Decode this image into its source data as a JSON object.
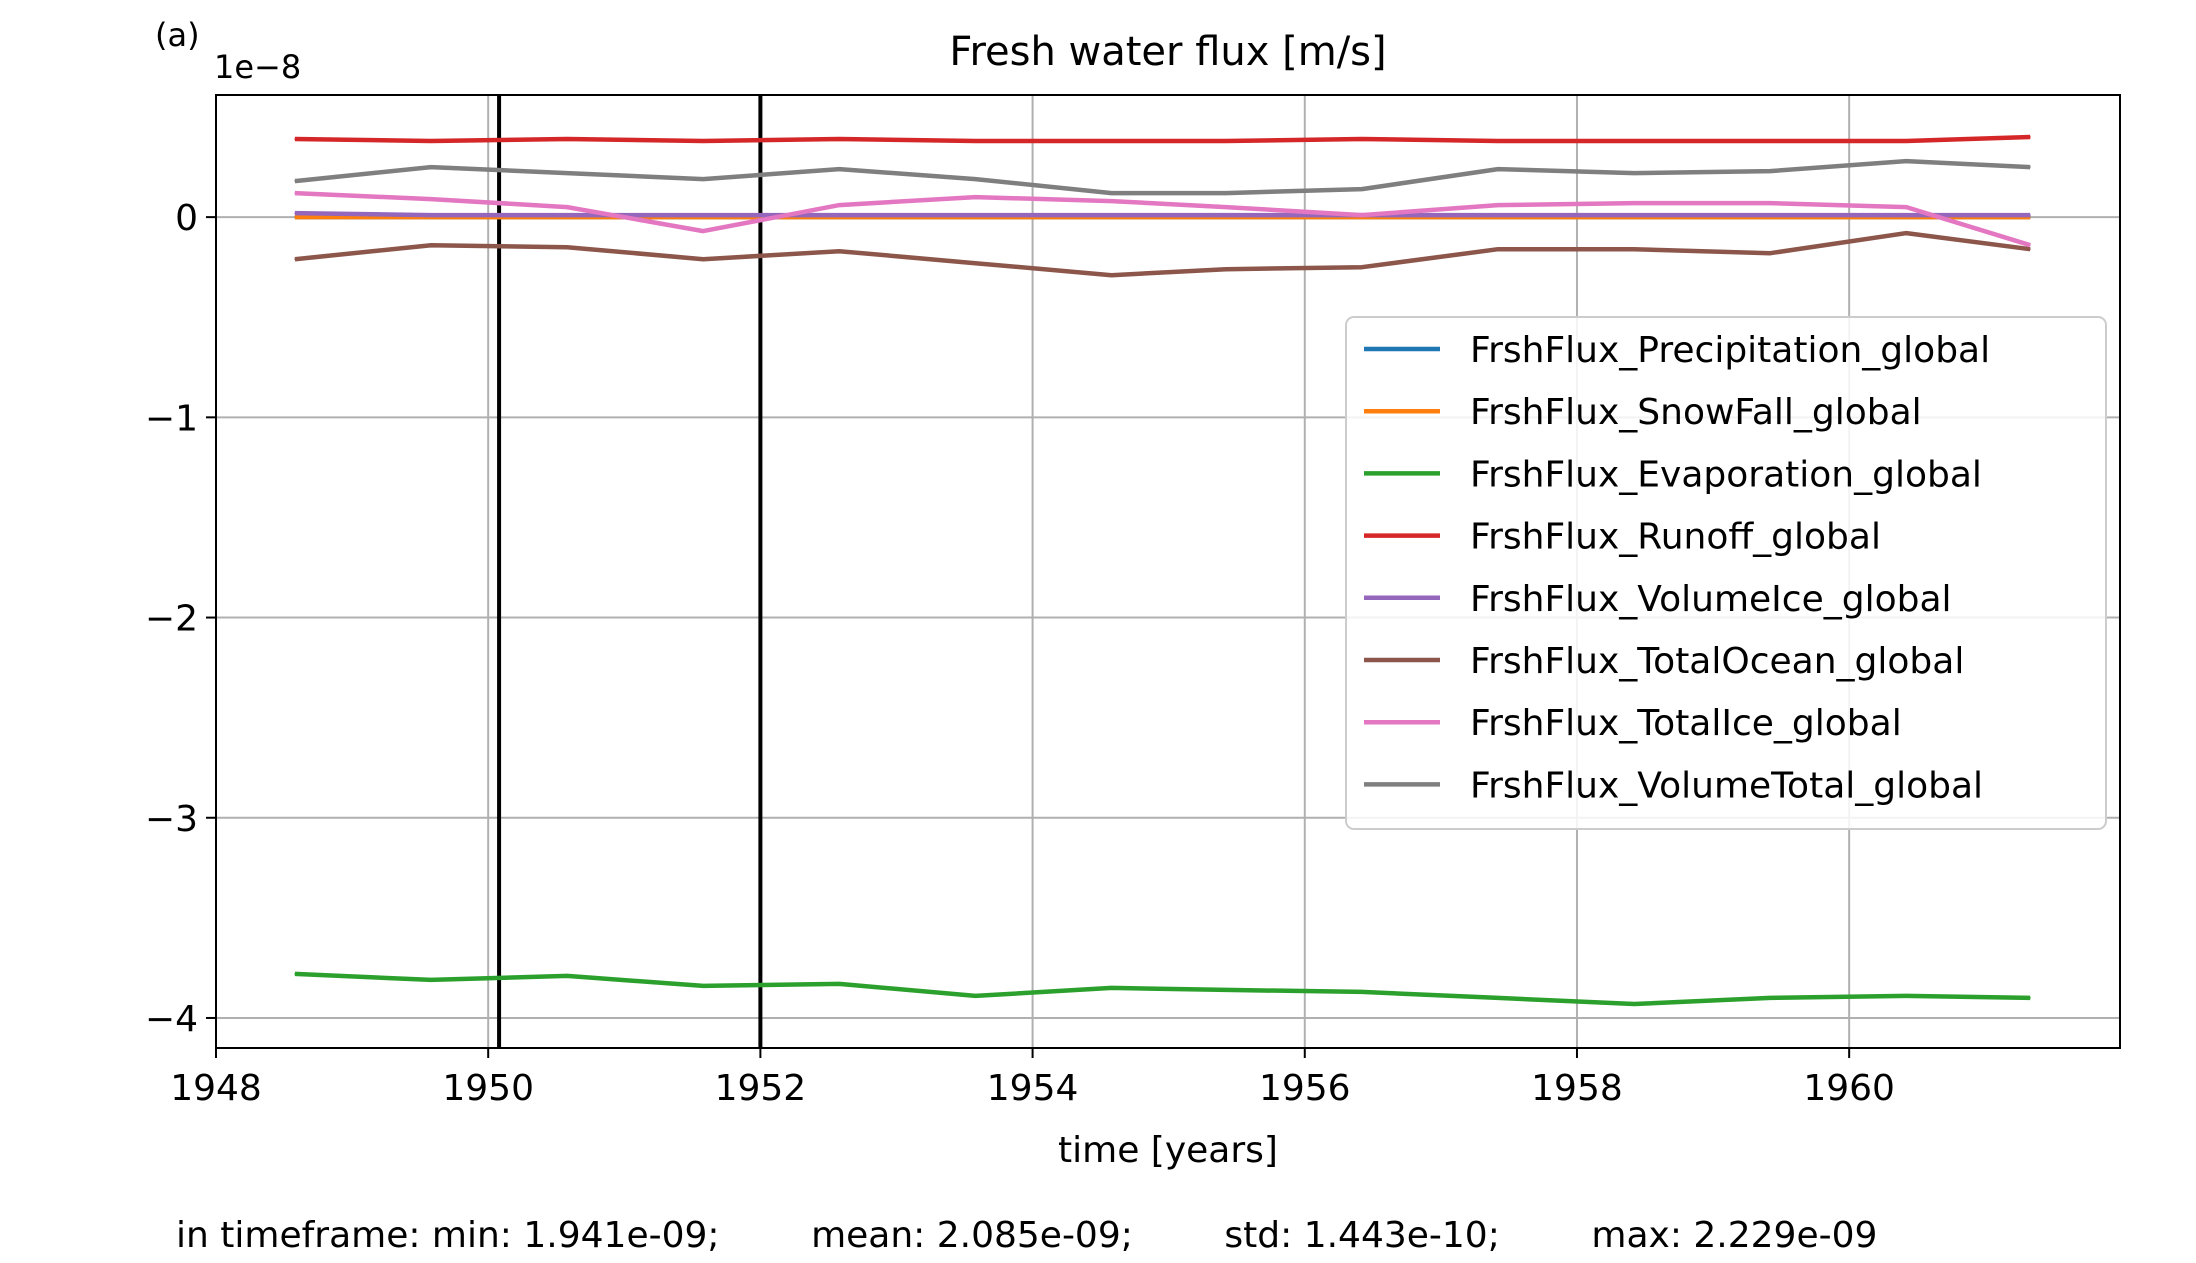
{
  "panel_label": "(a)",
  "footer": "in timeframe: min: 1.941e-09;        mean: 2.085e-09;        std: 1.443e-10;        max: 2.229e-09",
  "chart_data": {
    "type": "line",
    "title": "Fresh water flux [m/s]",
    "xlabel": "time [years]",
    "ylabel": "",
    "offset_label": "1e−8",
    "xlim": [
      1948.0,
      1961.99
    ],
    "ylim": [
      -4.15,
      0.61
    ],
    "xticks": [
      1948,
      1950,
      1952,
      1954,
      1956,
      1958,
      1960
    ],
    "xtick_labels": [
      "1948",
      "1950",
      "1952",
      "1954",
      "1956",
      "1958",
      "1960"
    ],
    "yticks": [
      -4,
      -3,
      -2,
      -1,
      0
    ],
    "ytick_labels": [
      "−4",
      "−3",
      "−2",
      "−1",
      "0"
    ],
    "grid": true,
    "legend_position": "center-right",
    "vlines": [
      1950.08,
      1952.0
    ],
    "x": [
      1948.58,
      1949.58,
      1950.58,
      1951.58,
      1952.58,
      1953.58,
      1954.58,
      1955.42,
      1956.42,
      1957.42,
      1958.42,
      1959.42,
      1960.42,
      1961.33
    ],
    "series": [
      {
        "name": "FrshFlux_Precipitation_global",
        "color": "#1f77b4",
        "values": [
          0.0,
          0.0,
          0.0,
          0.0,
          0.0,
          0.0,
          0.0,
          0.0,
          0.0,
          0.0,
          0.0,
          0.0,
          0.0,
          0.0
        ]
      },
      {
        "name": "FrshFlux_SnowFall_global",
        "color": "#ff7f0e",
        "values": [
          0.0,
          0.0,
          0.0,
          0.0,
          0.0,
          0.0,
          0.0,
          0.0,
          0.0,
          0.0,
          0.0,
          0.0,
          0.0,
          0.0
        ]
      },
      {
        "name": "FrshFlux_Evaporation_global",
        "color": "#2ca02c",
        "values": [
          -3.78,
          -3.81,
          -3.79,
          -3.84,
          -3.83,
          -3.89,
          -3.85,
          -3.86,
          -3.87,
          -3.9,
          -3.93,
          -3.9,
          -3.89,
          -3.9
        ]
      },
      {
        "name": "FrshFlux_Runoff_global",
        "color": "#d62728",
        "values": [
          0.39,
          0.38,
          0.39,
          0.38,
          0.39,
          0.38,
          0.38,
          0.38,
          0.39,
          0.38,
          0.38,
          0.38,
          0.38,
          0.4
        ]
      },
      {
        "name": "FrshFlux_VolumeIce_global",
        "color": "#9467bd",
        "values": [
          0.02,
          0.01,
          0.01,
          0.01,
          0.01,
          0.01,
          0.01,
          0.01,
          0.01,
          0.01,
          0.01,
          0.01,
          0.01,
          0.01
        ]
      },
      {
        "name": "FrshFlux_TotalOcean_global",
        "color": "#8c564b",
        "values": [
          -0.21,
          -0.14,
          -0.15,
          -0.21,
          -0.17,
          -0.23,
          -0.29,
          -0.26,
          -0.25,
          -0.16,
          -0.16,
          -0.18,
          -0.08,
          -0.16
        ]
      },
      {
        "name": "FrshFlux_TotalIce_global",
        "color": "#e377c2",
        "values": [
          0.12,
          0.09,
          0.05,
          -0.07,
          0.06,
          0.1,
          0.08,
          0.05,
          0.01,
          0.06,
          0.07,
          0.07,
          0.05,
          -0.14
        ]
      },
      {
        "name": "FrshFlux_VolumeTotal_global",
        "color": "#7f7f7f",
        "values": [
          0.18,
          0.25,
          0.22,
          0.19,
          0.24,
          0.19,
          0.12,
          0.12,
          0.14,
          0.24,
          0.22,
          0.23,
          0.28,
          0.25
        ]
      }
    ]
  }
}
